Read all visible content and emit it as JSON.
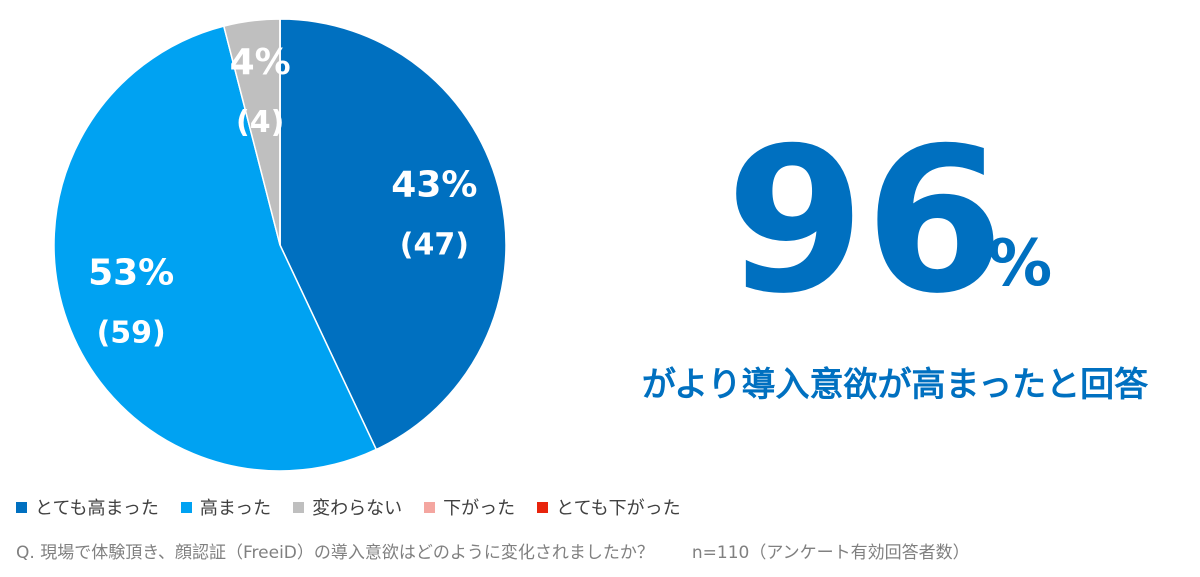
{
  "chart_data": {
    "type": "pie",
    "categories": [
      "とても高まった",
      "高まった",
      "変わらない",
      "下がった",
      "とても下がった"
    ],
    "values": [
      43,
      53,
      4,
      0,
      0
    ],
    "value_labels": [
      "43%",
      "53%",
      "4%",
      null,
      null
    ],
    "counts": [
      47,
      59,
      4,
      0,
      0
    ],
    "count_labels": [
      "(47)",
      "(59)",
      "(4)",
      null,
      null
    ],
    "colors": [
      "#0070c0",
      "#00a2f2",
      "#bfbfbf",
      "#f4a6a0",
      "#e8240c"
    ],
    "legend": "bottom",
    "highlight": {
      "number": "96",
      "unit": "%",
      "caption": "がより導入意欲が高まったと回答"
    },
    "question": "Q. 現場で体験頂き、顔認証（FreeiD）の導入意欲はどのように変化されましたか？",
    "sample": "n=110（アンケート有効回答者数）"
  }
}
